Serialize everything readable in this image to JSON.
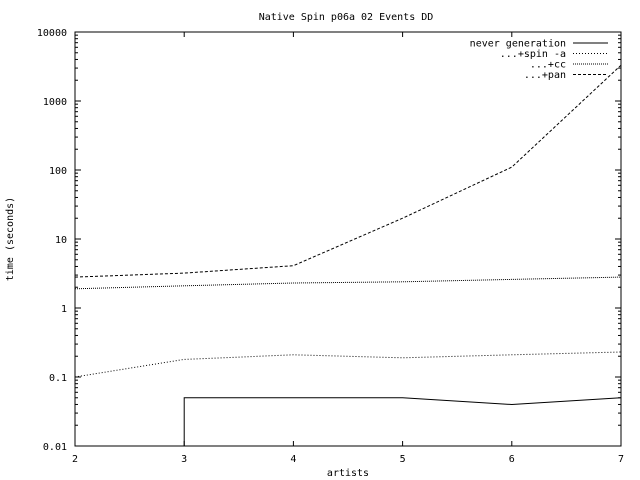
{
  "chart_data": {
    "type": "line",
    "title": "Native Spin p06a 02 Events DD",
    "xlabel": "artists",
    "ylabel": "time (seconds)",
    "y_scale": "log",
    "xlim": [
      2,
      7
    ],
    "ylim": [
      0.01,
      10000
    ],
    "x_ticks": [
      "2",
      "3",
      "4",
      "5",
      "6",
      "7"
    ],
    "y_ticks": [
      "0.01",
      "0.1",
      "1",
      "10",
      "100",
      "1000",
      "10000"
    ],
    "grid": false,
    "legend_position": "top-right",
    "series": [
      {
        "name": "never generation",
        "dash": "solid",
        "x": [
          3,
          3,
          4,
          5,
          6,
          7
        ],
        "y": [
          0.01,
          0.05,
          0.05,
          0.05,
          0.04,
          0.05
        ]
      },
      {
        "name": "...+spin -a",
        "dash": "dotted",
        "x": [
          2,
          3,
          4,
          5,
          6,
          7
        ],
        "y": [
          0.1,
          0.18,
          0.21,
          0.19,
          0.21,
          0.23
        ]
      },
      {
        "name": "...+cc",
        "dash": "dotted-fine",
        "x": [
          2,
          3,
          4,
          5,
          6,
          7
        ],
        "y": [
          1.9,
          2.1,
          2.3,
          2.4,
          2.6,
          2.8
        ]
      },
      {
        "name": "...+pan",
        "dash": "dashed",
        "x": [
          2,
          3,
          4,
          5,
          6,
          7
        ],
        "y": [
          2.8,
          3.2,
          4.1,
          20,
          110,
          3300
        ]
      }
    ]
  }
}
